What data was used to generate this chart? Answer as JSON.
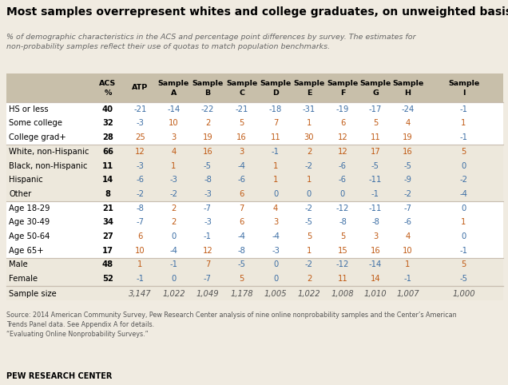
{
  "title": "Most samples overrepresent whites and college graduates, on unweighted basis",
  "subtitle": "% of demographic characteristics in the ACS and percentage point differences by survey. The estimates for\nnon‑probability samples reflect their use of quotas to match population benchmarks.",
  "rows": [
    {
      "label": "HS or less",
      "acs": 40,
      "values": [
        -21,
        -14,
        -22,
        -21,
        -18,
        -31,
        -19,
        -17,
        -24,
        -1
      ]
    },
    {
      "label": "Some college",
      "acs": 32,
      "values": [
        -3,
        10,
        2,
        5,
        7,
        1,
        6,
        5,
        4,
        1
      ]
    },
    {
      "label": "College grad+",
      "acs": 28,
      "values": [
        25,
        3,
        19,
        16,
        11,
        30,
        12,
        11,
        19,
        -1
      ]
    },
    {
      "label": "White, non-Hispanic",
      "acs": 66,
      "values": [
        12,
        4,
        16,
        3,
        -1,
        2,
        12,
        17,
        16,
        5
      ]
    },
    {
      "label": "Black, non-Hispanic",
      "acs": 11,
      "values": [
        -3,
        1,
        -5,
        -4,
        1,
        -2,
        -6,
        -5,
        -5,
        0
      ]
    },
    {
      "label": "Hispanic",
      "acs": 14,
      "values": [
        -6,
        -3,
        -8,
        -6,
        1,
        1,
        -6,
        -11,
        -9,
        -2
      ]
    },
    {
      "label": "Other",
      "acs": 8,
      "values": [
        -2,
        -2,
        -3,
        6,
        0,
        0,
        0,
        -1,
        -2,
        -4
      ]
    },
    {
      "label": "Age 18-29",
      "acs": 21,
      "values": [
        -8,
        2,
        -7,
        7,
        4,
        -2,
        -12,
        -11,
        -7,
        0
      ]
    },
    {
      "label": "Age 30-49",
      "acs": 34,
      "values": [
        -7,
        2,
        -3,
        6,
        3,
        -5,
        -8,
        -8,
        -6,
        1
      ]
    },
    {
      "label": "Age 50-64",
      "acs": 27,
      "values": [
        6,
        0,
        -1,
        -4,
        -4,
        5,
        5,
        3,
        4,
        0
      ]
    },
    {
      "label": "Age 65+",
      "acs": 17,
      "values": [
        10,
        -4,
        12,
        -8,
        -3,
        1,
        15,
        16,
        10,
        -1
      ]
    },
    {
      "label": "Male",
      "acs": 48,
      "values": [
        1,
        -1,
        7,
        -5,
        0,
        -2,
        -12,
        -14,
        1,
        5
      ]
    },
    {
      "label": "Female",
      "acs": 52,
      "values": [
        -1,
        0,
        -7,
        5,
        0,
        2,
        11,
        14,
        -1,
        -5
      ]
    }
  ],
  "sample_sizes": [
    "3,147",
    "1,022",
    "1,049",
    "1,178",
    "1,005",
    "1,022",
    "1,008",
    "1,010",
    "1,007",
    "1,000"
  ],
  "col_headers_line1": [
    "",
    "ACS",
    "ATP",
    "Sample",
    "Sample",
    "Sample",
    "Sample",
    "Sample",
    "Sample",
    "Sample",
    "Sample",
    "Sample"
  ],
  "col_headers_line2": [
    "",
    "%",
    "",
    "A",
    "B",
    "C",
    "D",
    "E",
    "F",
    "G",
    "H",
    "I"
  ],
  "source_text": "Source: 2014 American Community Survey, Pew Research Center analysis of nine online nonprobability samples and the Center’s American\nTrends Panel data. See Appendix A for details.\n“Evaluating Online Nonprobability Surveys.”",
  "footer": "PEW RESEARCH CENTER",
  "bg_color": "#f0ebe1",
  "row_bg_white": "#ffffff",
  "row_bg_tan": "#ede8dc",
  "header_bg": "#c8bfaa",
  "pos_color_white": "#c05a14",
  "neg_color_white": "#3c6ea5",
  "pos_color_tan": "#c05a14",
  "neg_color_tan": "#3c6ea5",
  "zero_color": "#3c6ea5",
  "label_color_white": "#000000",
  "label_color_tan": "#000000",
  "acs_color": "#000000",
  "group_bg": [
    0,
    1,
    0,
    1
  ],
  "group_boundaries": [
    0,
    3,
    7,
    11,
    13
  ]
}
